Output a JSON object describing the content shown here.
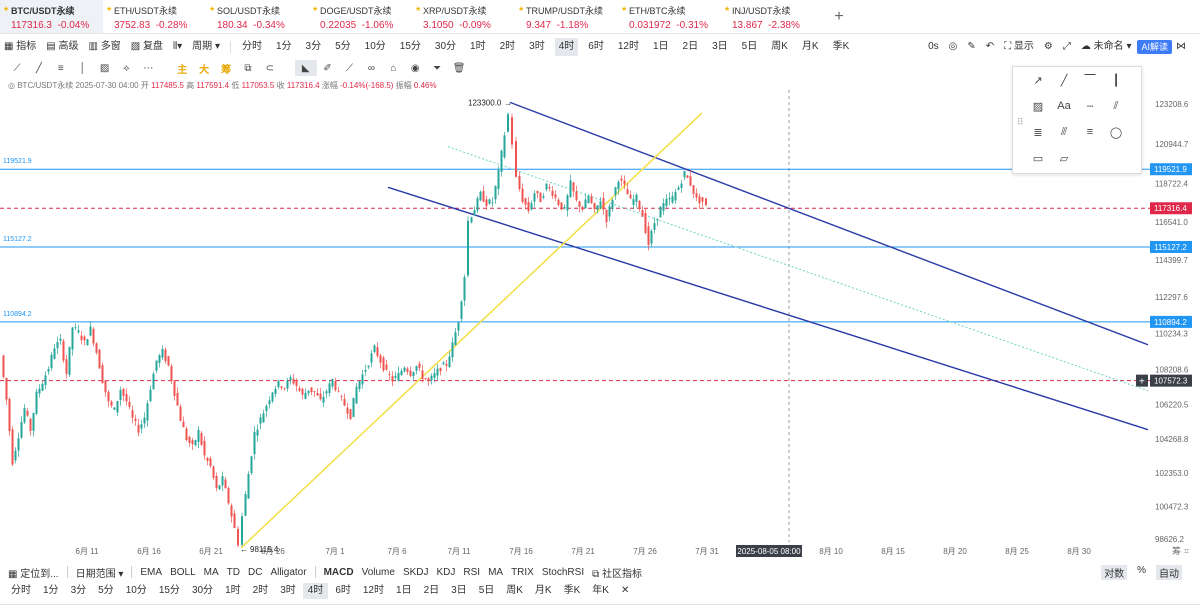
{
  "tickers": [
    {
      "name": "BTC/USDT永续",
      "price": "117316.3",
      "change": "-0.04%",
      "dir": "neg",
      "active": true
    },
    {
      "name": "ETH/USDT永续",
      "price": "3752.83",
      "change": "-0.28%",
      "dir": "neg"
    },
    {
      "name": "SOL/USDT永续",
      "price": "180.34",
      "change": "-0.34%",
      "dir": "neg"
    },
    {
      "name": "DOGE/USDT永续",
      "price": "0.22035",
      "change": "-1.06%",
      "dir": "neg"
    },
    {
      "name": "XRP/USDT永续",
      "price": "3.1050",
      "change": "-0.09%",
      "dir": "neg"
    },
    {
      "name": "TRUMP/USDT永续",
      "price": "9.347",
      "change": "-1.18%",
      "dir": "neg"
    },
    {
      "name": "ETH/BTC永续",
      "price": "0.031972",
      "change": "-0.31%",
      "dir": "neg"
    },
    {
      "name": "INJ/USDT永续",
      "price": "13.867",
      "change": "-2.38%",
      "dir": "neg"
    }
  ],
  "toolbar_left": [
    "指标",
    "高级",
    "多窗",
    "复盘",
    "周期"
  ],
  "periods": [
    "分时",
    "1分",
    "3分",
    "5分",
    "10分",
    "15分",
    "30分",
    "1时",
    "2时",
    "3时",
    "4时",
    "6时",
    "12时",
    "1日",
    "2日",
    "3日",
    "5日",
    "周K",
    "月K",
    "季K"
  ],
  "active_period": "4时",
  "toolbar_right": {
    "seconds": "0s",
    "display": "显示",
    "unnamed": "未命名",
    "ai": "AI解读"
  },
  "drawtools_text": [
    "主",
    "大",
    "筹"
  ],
  "ohlc": {
    "symbol": "BTC/USDT永续",
    "time": "2025-07-30 04:00",
    "open_label": "开",
    "open": "117485.5",
    "high_label": "高",
    "high": "117591.4",
    "low_label": "低",
    "low": "117053.5",
    "close_label": "收",
    "close": "117316.4",
    "change_label": "涨幅",
    "change": "-0.14%(-168.5)",
    "amp_label": "振幅",
    "amp": "0.46%"
  },
  "chart_data": {
    "type": "candlestick",
    "x_ticks": [
      "6月 11",
      "6月 16",
      "6月 21",
      "6月 26",
      "7月 1",
      "7月 6",
      "7月 11",
      "7月 16",
      "7月 21",
      "7月 26",
      "7月 31",
      "2025-08-05 08:00",
      "8月 10",
      "8月 15",
      "8月 20",
      "8月 25",
      "8月 30"
    ],
    "y_ticks": [
      "123208.6",
      "120944.7",
      "118722.4",
      "116541.0",
      "114399.7",
      "112297.6",
      "110234.3",
      "108208.6",
      "106220.5",
      "104268.8",
      "102353.0",
      "100472.3",
      "98626.2"
    ],
    "ylim": [
      98000,
      124000
    ],
    "path": [
      [
        2,
        109000
      ],
      [
        8,
        106500
      ],
      [
        14,
        103000
      ],
      [
        20,
        104500
      ],
      [
        26,
        106000
      ],
      [
        32,
        104800
      ],
      [
        38,
        106800
      ],
      [
        44,
        107500
      ],
      [
        50,
        108300
      ],
      [
        56,
        109500
      ],
      [
        62,
        109800
      ],
      [
        68,
        108000
      ],
      [
        74,
        110600
      ],
      [
        80,
        110300
      ],
      [
        86,
        109700
      ],
      [
        92,
        110500
      ],
      [
        98,
        109200
      ],
      [
        104,
        107600
      ],
      [
        110,
        106300
      ],
      [
        116,
        105900
      ],
      [
        122,
        107100
      ],
      [
        128,
        106400
      ],
      [
        134,
        105400
      ],
      [
        140,
        104800
      ],
      [
        146,
        105500
      ],
      [
        152,
        107200
      ],
      [
        158,
        108700
      ],
      [
        164,
        109200
      ],
      [
        170,
        108400
      ],
      [
        176,
        106900
      ],
      [
        182,
        105400
      ],
      [
        188,
        104300
      ],
      [
        194,
        103800
      ],
      [
        200,
        104700
      ],
      [
        206,
        103300
      ],
      [
        212,
        102700
      ],
      [
        218,
        101400
      ],
      [
        224,
        102000
      ],
      [
        230,
        100700
      ],
      [
        236,
        99200
      ],
      [
        240,
        98400
      ],
      [
        244,
        99900
      ],
      [
        250,
        102300
      ],
      [
        256,
        104600
      ],
      [
        262,
        105400
      ],
      [
        268,
        106200
      ],
      [
        274,
        107000
      ],
      [
        280,
        107400
      ],
      [
        286,
        107200
      ],
      [
        292,
        107700
      ],
      [
        298,
        107300
      ],
      [
        304,
        106700
      ],
      [
        310,
        107100
      ],
      [
        316,
        106900
      ],
      [
        322,
        106400
      ],
      [
        328,
        107000
      ],
      [
        334,
        107600
      ],
      [
        340,
        106800
      ],
      [
        346,
        106200
      ],
      [
        352,
        105600
      ],
      [
        358,
        107200
      ],
      [
        364,
        107900
      ],
      [
        370,
        108600
      ],
      [
        376,
        109400
      ],
      [
        382,
        108700
      ],
      [
        388,
        108000
      ],
      [
        394,
        107600
      ],
      [
        400,
        107900
      ],
      [
        406,
        108400
      ],
      [
        412,
        108000
      ],
      [
        418,
        108400
      ],
      [
        424,
        107800
      ],
      [
        430,
        107500
      ],
      [
        436,
        107900
      ],
      [
        442,
        108300
      ],
      [
        448,
        108500
      ],
      [
        454,
        109600
      ],
      [
        460,
        111000
      ],
      [
        466,
        113500
      ],
      [
        470,
        116600
      ],
      [
        476,
        117300
      ],
      [
        482,
        118100
      ],
      [
        488,
        117600
      ],
      [
        494,
        117700
      ],
      [
        500,
        119300
      ],
      [
        506,
        121500
      ],
      [
        510,
        122600
      ],
      [
        514,
        121000
      ],
      [
        518,
        119000
      ],
      [
        524,
        117800
      ],
      [
        530,
        117200
      ],
      [
        536,
        118200
      ],
      [
        542,
        117800
      ],
      [
        548,
        118600
      ],
      [
        554,
        118200
      ],
      [
        560,
        117600
      ],
      [
        566,
        117200
      ],
      [
        572,
        118700
      ],
      [
        578,
        117700
      ],
      [
        584,
        117300
      ],
      [
        590,
        118000
      ],
      [
        596,
        117100
      ],
      [
        602,
        117800
      ],
      [
        608,
        116700
      ],
      [
        614,
        117900
      ],
      [
        620,
        119000
      ],
      [
        626,
        118500
      ],
      [
        632,
        117700
      ],
      [
        638,
        117900
      ],
      [
        644,
        116900
      ],
      [
        650,
        115300
      ],
      [
        656,
        116500
      ],
      [
        662,
        117300
      ],
      [
        668,
        117700
      ],
      [
        674,
        117900
      ],
      [
        680,
        118500
      ],
      [
        686,
        119300
      ],
      [
        692,
        118700
      ],
      [
        698,
        117800
      ],
      [
        704,
        117700
      ],
      [
        708,
        117400
      ]
    ],
    "levels": [
      {
        "label": "119521.9",
        "color": "#2196f3",
        "style": "solid"
      },
      {
        "label": "115127.2",
        "color": "#2196f3",
        "style": "solid"
      },
      {
        "label": "110894.2",
        "color": "#2196f3",
        "style": "solid"
      },
      {
        "label": "117316.4",
        "color": "#e0294a",
        "style": "dashed"
      },
      {
        "label": "107572.3",
        "color": "#e0294a",
        "style": "dashed"
      }
    ],
    "annotations": {
      "high": "123300.0",
      "low": "98115.4"
    }
  },
  "indicators": [
    "EMA",
    "BOLL",
    "MA",
    "TD",
    "DC",
    "Alligator"
  ],
  "sub_indicators": [
    "MACD",
    "Volume",
    "SKDJ",
    "KDJ",
    "RSI",
    "MA",
    "TRIX",
    "StochRSI"
  ],
  "community": "社区指标",
  "positioning": "定位到...",
  "date_range": "日期范围",
  "log_label": "对数",
  "percent_label": "%",
  "auto_label": "自动",
  "bottom_periods": [
    "分时",
    "1分",
    "3分",
    "5分",
    "10分",
    "15分",
    "30分",
    "1时",
    "2时",
    "3时",
    "4时",
    "6时",
    "12时",
    "1日",
    "2日",
    "3日",
    "5日",
    "周K",
    "月K",
    "季K",
    "年K"
  ],
  "bottom_active": "4时",
  "corner": "筹"
}
